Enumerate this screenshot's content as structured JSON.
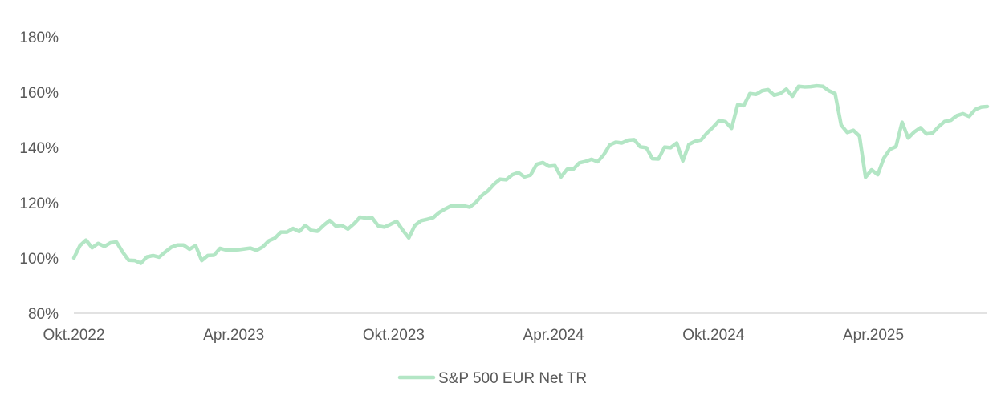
{
  "chart_data": {
    "type": "line",
    "title": "",
    "xlabel": "",
    "ylabel": "",
    "y_unit": "%",
    "ylim": [
      80,
      180
    ],
    "y_ticks": [
      80,
      100,
      120,
      140,
      160,
      180
    ],
    "y_tick_labels": [
      "80%",
      "100%",
      "120%",
      "140%",
      "160%",
      "180%"
    ],
    "x_tick_labels": [
      "Okt.2022",
      "Apr.2023",
      "Okt.2023",
      "Apr.2024",
      "Okt.2024",
      "Apr.2025"
    ],
    "grid": false,
    "legend": "bottom-center",
    "colors": {
      "series": "#b3e6c5",
      "axis": "#d9d9d9",
      "text": "#595959"
    },
    "series": [
      {
        "name": "S&P 500 EUR Net TR",
        "x_start": "Okt.2022",
        "frequency": "weekly",
        "values": [
          100,
          104.5,
          106.5,
          103.7,
          105.3,
          104.2,
          105.5,
          105.8,
          102.2,
          99.2,
          99.1,
          98.1,
          100.4,
          100.9,
          100.3,
          102.2,
          103.9,
          104.7,
          104.7,
          103.2,
          104.5,
          99.1,
          100.9,
          101,
          103.5,
          102.9,
          102.9,
          103,
          103.3,
          103.6,
          102.8,
          104,
          106.2,
          107.2,
          109.4,
          109.4,
          110.7,
          109.6,
          111.8,
          110,
          109.7,
          111.8,
          113.6,
          111.6,
          111.8,
          110.5,
          112.4,
          114.8,
          114.4,
          114.5,
          111.6,
          111.2,
          112.2,
          113.3,
          110.1,
          107.3,
          111.8,
          113.5,
          114,
          114.6,
          116.5,
          117.8,
          118.9,
          118.9,
          118.9,
          118.4,
          120.1,
          122.6,
          124.3,
          126.7,
          128.5,
          128.3,
          130.1,
          130.9,
          129.3,
          130,
          133.9,
          134.5,
          133.2,
          133.4,
          129.3,
          132.1,
          132.1,
          134.4,
          134.9,
          135.7,
          134.8,
          137.3,
          140.9,
          141.9,
          141.6,
          142.6,
          142.8,
          140.2,
          139.9,
          135.9,
          135.8,
          140.1,
          139.9,
          141.6,
          135.1,
          141.1,
          142.2,
          142.7,
          145.3,
          147.4,
          149.8,
          149.3,
          146.9,
          155.4,
          155.1,
          159.5,
          159.2,
          160.5,
          160.9,
          158.9,
          159.5,
          161.1,
          158.5,
          162.1,
          161.9,
          162,
          162.3,
          162.1,
          160.5,
          159.5,
          148.1,
          145.4,
          146.2,
          144.1,
          129.2,
          131.9,
          130.1,
          136.1,
          139.3,
          140.3,
          149.1,
          143.4,
          145.6,
          147.1,
          144.9,
          145.2,
          147.5,
          149.4,
          149.8,
          151.5,
          152.2,
          151.2,
          153.7,
          154.6,
          154.8
        ]
      }
    ]
  }
}
